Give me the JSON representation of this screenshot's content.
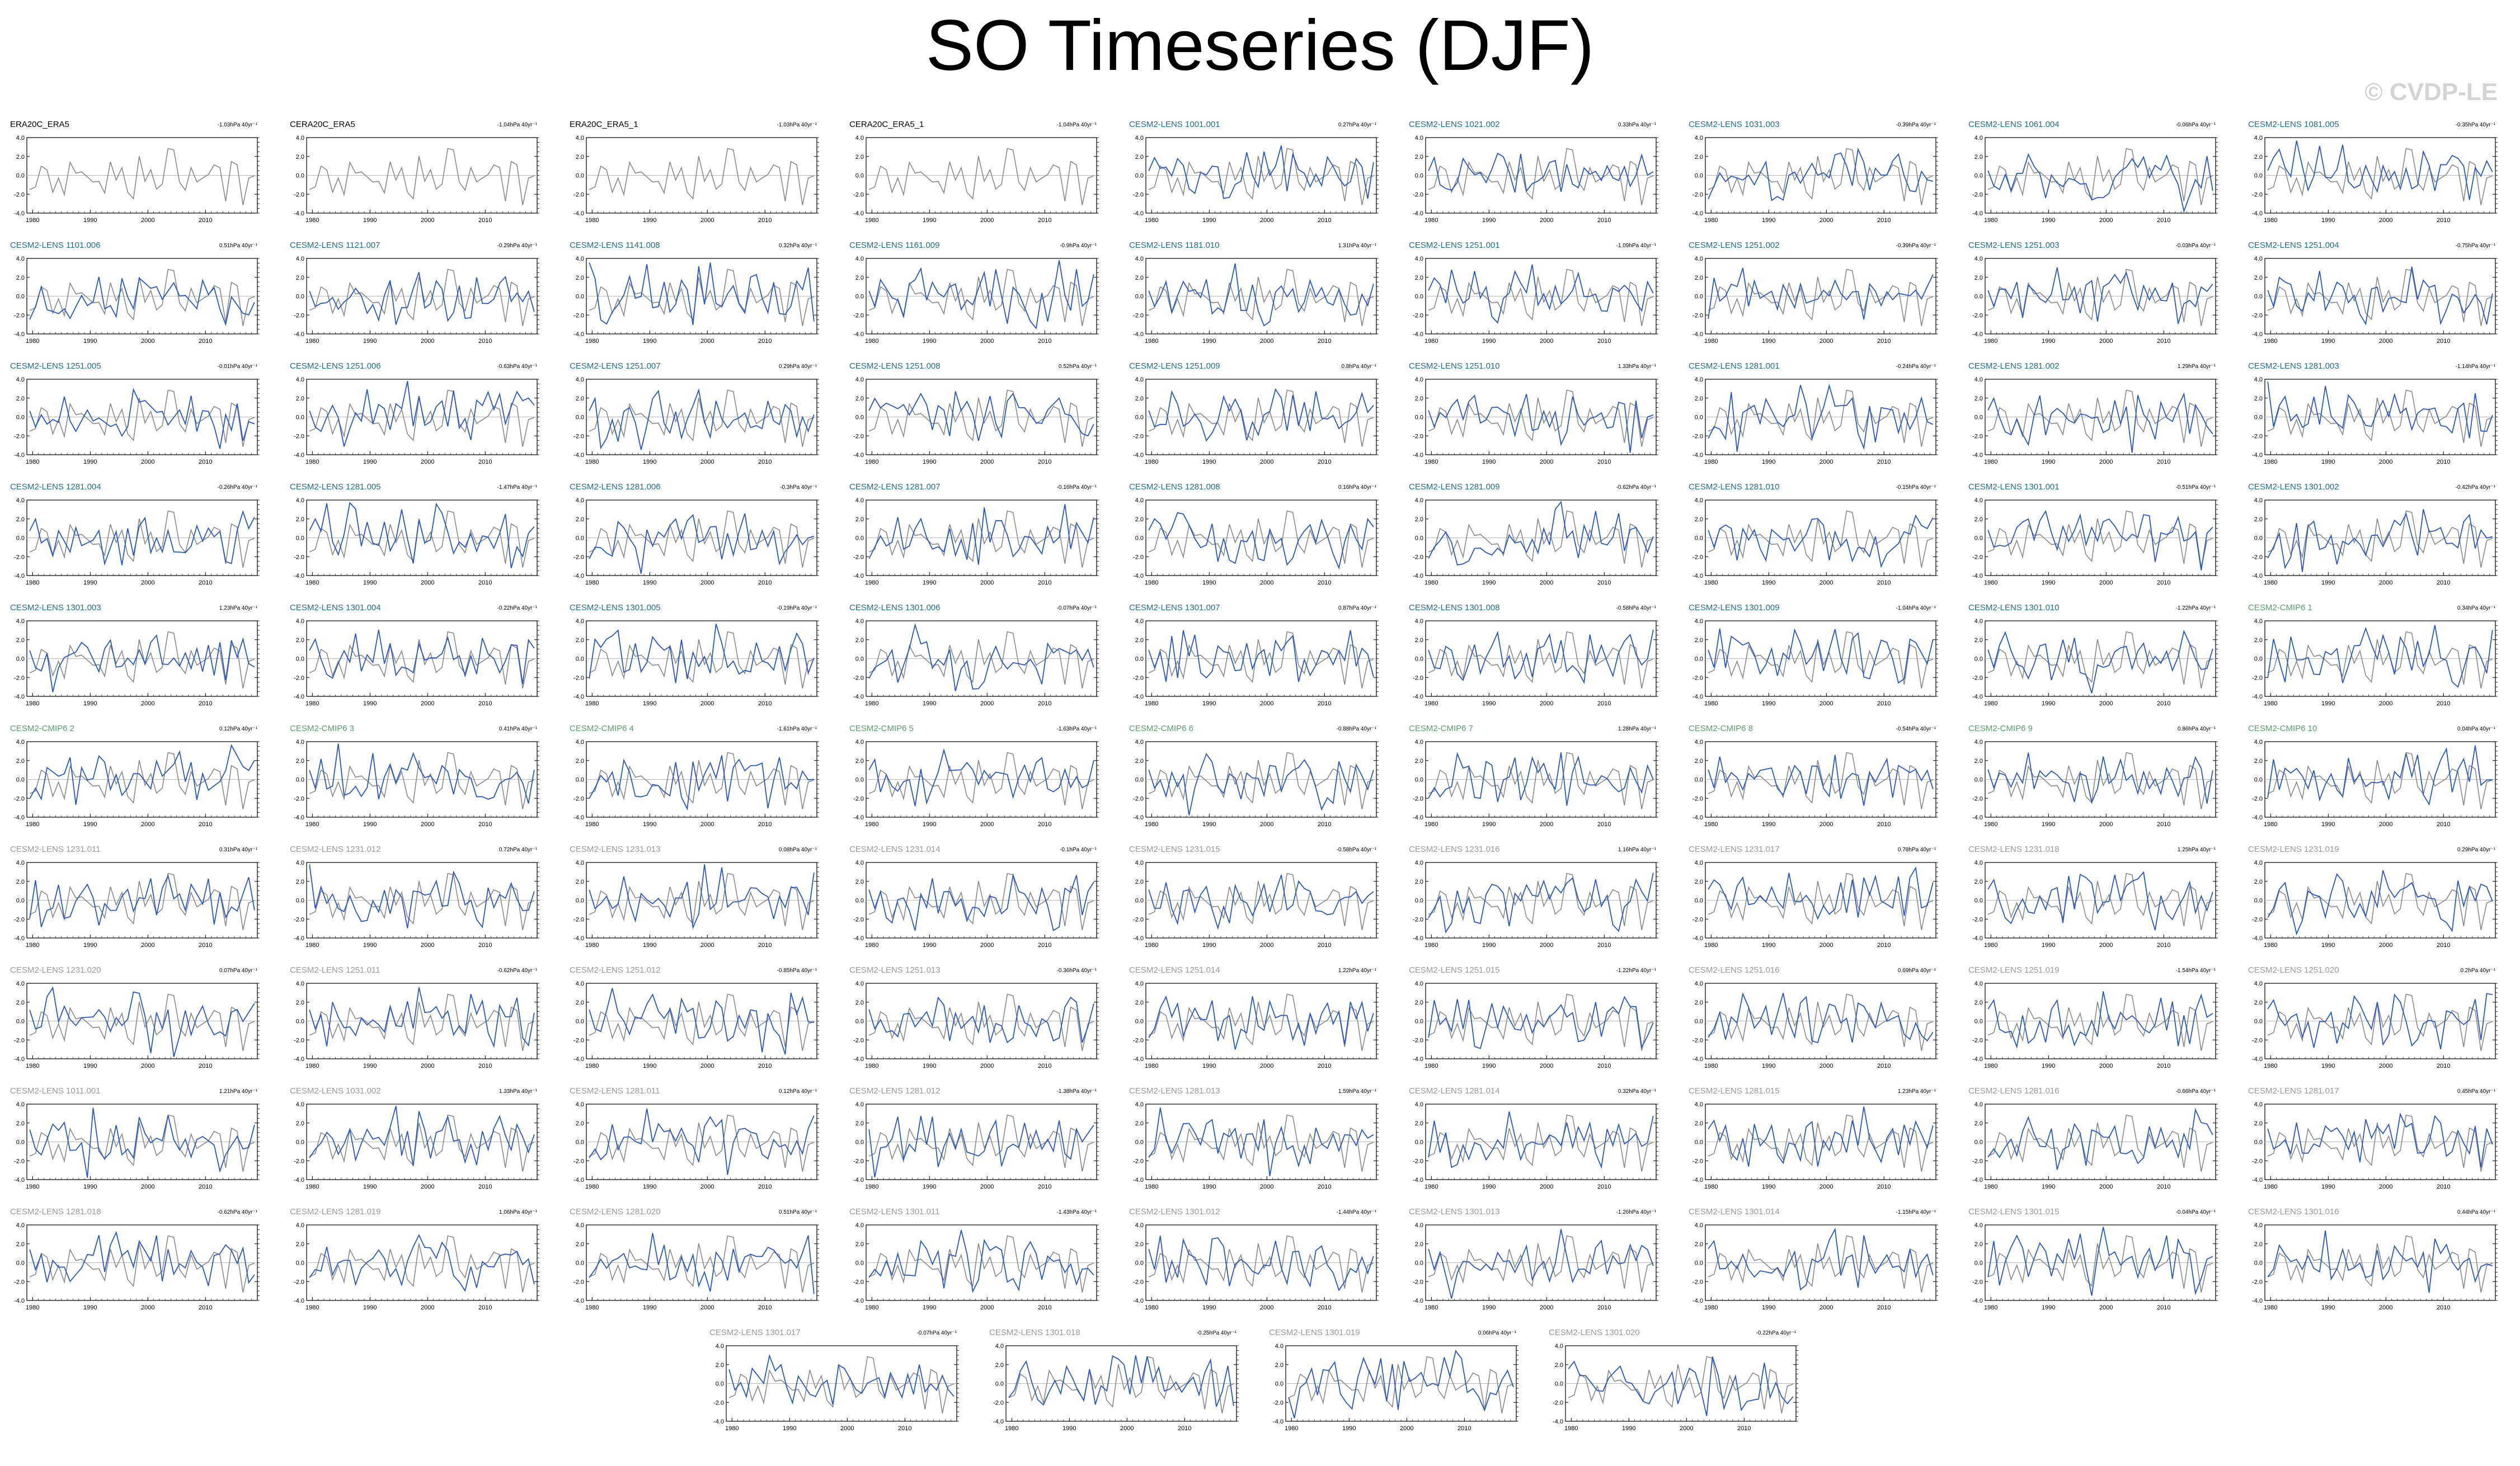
{
  "title": "SO Timeseries (DJF)",
  "watermark": "© CVDP-LE",
  "colors": {
    "observations": "#000000",
    "cesm2_lens": "#1f6f8b",
    "cesm2_cmip6": "#5a9e6f",
    "cesm2_lens_smbb": "#9a9a9a",
    "model_series": "#2a56c6",
    "obs_series": "#8a8a8a"
  },
  "chart_data": {
    "type": "line",
    "panel_layout": "small multiples, 9 columns x 10 rows plus 4 centered panels in final row",
    "xlim": [
      1979,
      2019
    ],
    "ylim": [
      -4,
      4
    ],
    "x_ticks": [
      1980,
      1990,
      2000,
      2010
    ],
    "y_ticks": [
      4.0,
      2.0,
      0.0,
      -2.0,
      -4.0
    ],
    "y_tick_labels": [
      "4.0",
      "2.0",
      "0.0",
      "-2.0",
      "-4.0"
    ],
    "grid": false,
    "series_styles": {
      "observations_only_panels": "single grey line",
      "model_panels": "blue model line with grey observed line overlay, grey zero line"
    },
    "panels": [
      {
        "title": "ERA20C_ERA5",
        "trend": "-1.03hPa 40yr⁻¹",
        "group": "obs"
      },
      {
        "title": "CERA20C_ERA5",
        "trend": "-1.04hPa 40yr⁻¹",
        "group": "obs"
      },
      {
        "title": "ERA20C_ERA5_1",
        "trend": "-1.03hPa 40yr⁻¹",
        "group": "obs"
      },
      {
        "title": "CERA20C_ERA5_1",
        "trend": "-1.04hPa 40yr⁻¹",
        "group": "obs"
      },
      {
        "title": "CESM2-LENS 1001.001",
        "trend": "0.27hPa 40yr⁻¹",
        "group": "lens"
      },
      {
        "title": "CESM2-LENS 1021.002",
        "trend": "0.33hPa 40yr⁻¹",
        "group": "lens"
      },
      {
        "title": "CESM2-LENS 1031.003",
        "trend": "-0.39hPa 40yr⁻¹",
        "group": "lens"
      },
      {
        "title": "CESM2-LENS 1061.004",
        "trend": "-0.06hPa 40yr⁻¹",
        "group": "lens"
      },
      {
        "title": "CESM2-LENS 1081.005",
        "trend": "-0.35hPa 40yr⁻¹",
        "group": "lens"
      },
      {
        "title": "CESM2-LENS 1101.006",
        "trend": "0.51hPa 40yr⁻¹",
        "group": "lens"
      },
      {
        "title": "CESM2-LENS 1121.007",
        "trend": "-0.29hPa 40yr⁻¹",
        "group": "lens"
      },
      {
        "title": "CESM2-LENS 1141.008",
        "trend": "0.32hPa 40yr⁻¹",
        "group": "lens"
      },
      {
        "title": "CESM2-LENS 1161.009",
        "trend": "-0.9hPa 40yr⁻¹",
        "group": "lens"
      },
      {
        "title": "CESM2-LENS 1181.010",
        "trend": "1.31hPa 40yr⁻¹",
        "group": "lens"
      },
      {
        "title": "CESM2-LENS 1251.001",
        "trend": "-1.09hPa 40yr⁻¹",
        "group": "lens"
      },
      {
        "title": "CESM2-LENS 1251.002",
        "trend": "-0.39hPa 40yr⁻¹",
        "group": "lens"
      },
      {
        "title": "CESM2-LENS 1251.003",
        "trend": "-0.03hPa 40yr⁻¹",
        "group": "lens"
      },
      {
        "title": "CESM2-LENS 1251.004",
        "trend": "-0.75hPa 40yr⁻¹",
        "group": "lens"
      },
      {
        "title": "CESM2-LENS 1251.005",
        "trend": "-0.01hPa 40yr⁻¹",
        "group": "lens"
      },
      {
        "title": "CESM2-LENS 1251.006",
        "trend": "-0.63hPa 40yr⁻¹",
        "group": "lens"
      },
      {
        "title": "CESM2-LENS 1251.007",
        "trend": "0.29hPa 40yr⁻¹",
        "group": "lens"
      },
      {
        "title": "CESM2-LENS 1251.008",
        "trend": "0.52hPa 40yr⁻¹",
        "group": "lens"
      },
      {
        "title": "CESM2-LENS 1251.009",
        "trend": "0.8hPa 40yr⁻¹",
        "group": "lens"
      },
      {
        "title": "CESM2-LENS 1251.010",
        "trend": "1.33hPa 40yr⁻¹",
        "group": "lens"
      },
      {
        "title": "CESM2-LENS 1281.001",
        "trend": "-0.24hPa 40yr⁻¹",
        "group": "lens"
      },
      {
        "title": "CESM2-LENS 1281.002",
        "trend": "1.29hPa 40yr⁻¹",
        "group": "lens"
      },
      {
        "title": "CESM2-LENS 1281.003",
        "trend": "-1.14hPa 40yr⁻¹",
        "group": "lens"
      },
      {
        "title": "CESM2-LENS 1281.004",
        "trend": "-0.26hPa 40yr⁻¹",
        "group": "lens"
      },
      {
        "title": "CESM2-LENS 1281.005",
        "trend": "-1.47hPa 40yr⁻¹",
        "group": "lens"
      },
      {
        "title": "CESM2-LENS 1281.006",
        "trend": "-0.3hPa 40yr⁻¹",
        "group": "lens"
      },
      {
        "title": "CESM2-LENS 1281.007",
        "trend": "-0.16hPa 40yr⁻¹",
        "group": "lens"
      },
      {
        "title": "CESM2-LENS 1281.008",
        "trend": "0.16hPa 40yr⁻¹",
        "group": "lens"
      },
      {
        "title": "CESM2-LENS 1281.009",
        "trend": "-0.62hPa 40yr⁻¹",
        "group": "lens"
      },
      {
        "title": "CESM2-LENS 1281.010",
        "trend": "-0.15hPa 40yr⁻¹",
        "group": "lens"
      },
      {
        "title": "CESM2-LENS 1301.001",
        "trend": "-0.51hPa 40yr⁻¹",
        "group": "lens"
      },
      {
        "title": "CESM2-LENS 1301.002",
        "trend": "-0.42hPa 40yr⁻¹",
        "group": "lens"
      },
      {
        "title": "CESM2-LENS 1301.003",
        "trend": "1.23hPa 40yr⁻¹",
        "group": "lens"
      },
      {
        "title": "CESM2-LENS 1301.004",
        "trend": "-0.22hPa 40yr⁻¹",
        "group": "lens"
      },
      {
        "title": "CESM2-LENS 1301.005",
        "trend": "-0.19hPa 40yr⁻¹",
        "group": "lens"
      },
      {
        "title": "CESM2-LENS 1301.006",
        "trend": "-0.07hPa 40yr⁻¹",
        "group": "lens"
      },
      {
        "title": "CESM2-LENS 1301.007",
        "trend": "0.87hPa 40yr⁻¹",
        "group": "lens"
      },
      {
        "title": "CESM2-LENS 1301.008",
        "trend": "-0.58hPa 40yr⁻¹",
        "group": "lens"
      },
      {
        "title": "CESM2-LENS 1301.009",
        "trend": "-1.04hPa 40yr⁻¹",
        "group": "lens"
      },
      {
        "title": "CESM2-LENS 1301.010",
        "trend": "-1.22hPa 40yr⁻¹",
        "group": "lens"
      },
      {
        "title": "CESM2-CMIP6 1",
        "trend": "0.34hPa 40yr⁻¹",
        "group": "cmip6"
      },
      {
        "title": "CESM2-CMIP6 2",
        "trend": "0.12hPa 40yr⁻¹",
        "group": "cmip6"
      },
      {
        "title": "CESM2-CMIP6 3",
        "trend": "0.41hPa 40yr⁻¹",
        "group": "cmip6"
      },
      {
        "title": "CESM2-CMIP6 4",
        "trend": "-1.61hPa 40yr⁻¹",
        "group": "cmip6"
      },
      {
        "title": "CESM2-CMIP6 5",
        "trend": "-1.63hPa 40yr⁻¹",
        "group": "cmip6"
      },
      {
        "title": "CESM2-CMIP6 6",
        "trend": "-0.88hPa 40yr⁻¹",
        "group": "cmip6"
      },
      {
        "title": "CESM2-CMIP6 7",
        "trend": "1.28hPa 40yr⁻¹",
        "group": "cmip6"
      },
      {
        "title": "CESM2-CMIP6 8",
        "trend": "-0.54hPa 40yr⁻¹",
        "group": "cmip6"
      },
      {
        "title": "CESM2-CMIP6 9",
        "trend": "0.86hPa 40yr⁻¹",
        "group": "cmip6"
      },
      {
        "title": "CESM2-CMIP6 10",
        "trend": "0.04hPa 40yr⁻¹",
        "group": "cmip6"
      },
      {
        "title": "CESM2-LENS 1231.011",
        "trend": "0.31hPa 40yr⁻¹",
        "group": "smbb"
      },
      {
        "title": "CESM2-LENS 1231.012",
        "trend": "0.72hPa 40yr⁻¹",
        "group": "smbb"
      },
      {
        "title": "CESM2-LENS 1231.013",
        "trend": "0.08hPa 40yr⁻¹",
        "group": "smbb"
      },
      {
        "title": "CESM2-LENS 1231.014",
        "trend": "-0.1hPa 40yr⁻¹",
        "group": "smbb"
      },
      {
        "title": "CESM2-LENS 1231.015",
        "trend": "-0.58hPa 40yr⁻¹",
        "group": "smbb"
      },
      {
        "title": "CESM2-LENS 1231.016",
        "trend": "1.16hPa 40yr⁻¹",
        "group": "smbb"
      },
      {
        "title": "CESM2-LENS 1231.017",
        "trend": "0.78hPa 40yr⁻¹",
        "group": "smbb"
      },
      {
        "title": "CESM2-LENS 1231.018",
        "trend": "1.25hPa 40yr⁻¹",
        "group": "smbb"
      },
      {
        "title": "CESM2-LENS 1231.019",
        "trend": "0.29hPa 40yr⁻¹",
        "group": "smbb"
      },
      {
        "title": "CESM2-LENS 1231.020",
        "trend": "0.07hPa 40yr⁻¹",
        "group": "smbb"
      },
      {
        "title": "CESM2-LENS 1251.011",
        "trend": "-0.62hPa 40yr⁻¹",
        "group": "smbb"
      },
      {
        "title": "CESM2-LENS 1251.012",
        "trend": "-0.85hPa 40yr⁻¹",
        "group": "smbb"
      },
      {
        "title": "CESM2-LENS 1251.013",
        "trend": "-0.36hPa 40yr⁻¹",
        "group": "smbb"
      },
      {
        "title": "CESM2-LENS 1251.014",
        "trend": "1.22hPa 40yr⁻¹",
        "group": "smbb"
      },
      {
        "title": "CESM2-LENS 1251.015",
        "trend": "-1.22hPa 40yr⁻¹",
        "group": "smbb"
      },
      {
        "title": "CESM2-LENS 1251.016",
        "trend": "0.69hPa 40yr⁻¹",
        "group": "smbb"
      },
      {
        "title": "CESM2-LENS 1251.019",
        "trend": "-1.54hPa 40yr⁻¹",
        "group": "smbb"
      },
      {
        "title": "CESM2-LENS 1251.020",
        "trend": "0.2hPa 40yr⁻¹",
        "group": "smbb"
      },
      {
        "title": "CESM2-LENS 1011.001",
        "trend": "1.21hPa 40yr⁻¹",
        "group": "smbb"
      },
      {
        "title": "CESM2-LENS 1031.002",
        "trend": "1.33hPa 40yr⁻¹",
        "group": "smbb"
      },
      {
        "title": "CESM2-LENS 1281.011",
        "trend": "0.12hPa 40yr⁻¹",
        "group": "smbb"
      },
      {
        "title": "CESM2-LENS 1281.012",
        "trend": "-1.38hPa 40yr⁻¹",
        "group": "smbb"
      },
      {
        "title": "CESM2-LENS 1281.013",
        "trend": "1.59hPa 40yr⁻¹",
        "group": "smbb"
      },
      {
        "title": "CESM2-LENS 1281.014",
        "trend": "0.32hPa 40yr⁻¹",
        "group": "smbb"
      },
      {
        "title": "CESM2-LENS 1281.015",
        "trend": "1.23hPa 40yr⁻¹",
        "group": "smbb"
      },
      {
        "title": "CESM2-LENS 1281.016",
        "trend": "-0.66hPa 40yr⁻¹",
        "group": "smbb"
      },
      {
        "title": "CESM2-LENS 1281.017",
        "trend": "0.45hPa 40yr⁻¹",
        "group": "smbb"
      },
      {
        "title": "CESM2-LENS 1281.018",
        "trend": "-0.62hPa 40yr⁻¹",
        "group": "smbb"
      },
      {
        "title": "CESM2-LENS 1281.019",
        "trend": "1.06hPa 40yr⁻¹",
        "group": "smbb"
      },
      {
        "title": "CESM2-LENS 1281.020",
        "trend": "0.51hPa 40yr⁻¹",
        "group": "smbb"
      },
      {
        "title": "CESM2-LENS 1301.011",
        "trend": "-1.43hPa 40yr⁻¹",
        "group": "smbb"
      },
      {
        "title": "CESM2-LENS 1301.012",
        "trend": "-1.44hPa 40yr⁻¹",
        "group": "smbb"
      },
      {
        "title": "CESM2-LENS 1301.013",
        "trend": "-1.26hPa 40yr⁻¹",
        "group": "smbb"
      },
      {
        "title": "CESM2-LENS 1301.014",
        "trend": "-1.15hPa 40yr⁻¹",
        "group": "smbb"
      },
      {
        "title": "CESM2-LENS 1301.015",
        "trend": "-0.04hPa 40yr⁻¹",
        "group": "smbb"
      },
      {
        "title": "CESM2-LENS 1301.016",
        "trend": "0.44hPa 40yr⁻¹",
        "group": "smbb"
      },
      {
        "title": "CESM2-LENS 1301.017",
        "trend": "-0.07hPa 40yr⁻¹",
        "group": "smbb"
      },
      {
        "title": "CESM2-LENS 1301.018",
        "trend": "-0.25hPa 40yr⁻¹",
        "group": "smbb"
      },
      {
        "title": "CESM2-LENS 1301.019",
        "trend": "0.06hPa 40yr⁻¹",
        "group": "smbb"
      },
      {
        "title": "CESM2-LENS 1301.020",
        "trend": "-0.22hPa 40yr⁻¹",
        "group": "smbb"
      }
    ]
  }
}
